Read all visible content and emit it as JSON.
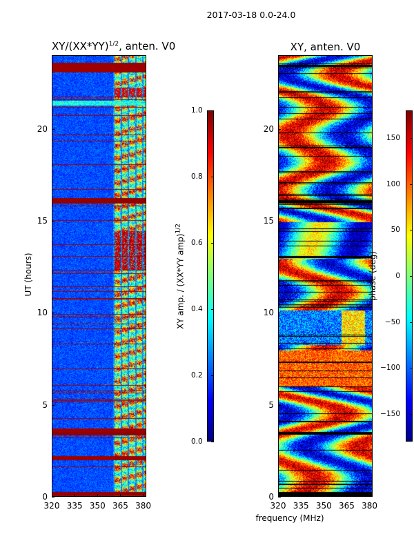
{
  "chart_data": [
    {
      "type": "heatmap",
      "suptitle": "2017-03-18 0.0-24.0",
      "title_base": "XY/(XX*YY)",
      "title_exp": "1/2",
      "title_tail": ", anten. V0",
      "ylabel": "UT (hours)",
      "xlim": [
        320,
        382
      ],
      "ylim": [
        0,
        24
      ],
      "xticks": [
        320,
        335,
        350,
        365,
        380
      ],
      "yticks": [
        0,
        5,
        10,
        15,
        20
      ],
      "colorbar": {
        "label_base": "XY amp. / (XX*YY amp)",
        "label_exp": "1/2",
        "range": [
          0.0,
          1.0
        ],
        "ticks": [
          "0.0",
          "0.2",
          "0.4",
          "0.6",
          "0.8",
          "1.0"
        ],
        "colormap": "jet"
      }
    },
    {
      "type": "heatmap",
      "title": "XY, anten. V0",
      "xlabel": "frequency (MHz)",
      "xlim": [
        320,
        382
      ],
      "ylim": [
        0,
        24
      ],
      "xticks": [
        320,
        335,
        350,
        365,
        380
      ],
      "yticks": [
        0,
        5,
        10,
        15,
        20
      ],
      "colorbar": {
        "label": "phase (deg)",
        "range": [
          -180,
          180
        ],
        "ticks": [
          "−150",
          "−100",
          "−50",
          "0",
          "50",
          "100",
          "150"
        ],
        "colormap": "jet"
      }
    }
  ]
}
